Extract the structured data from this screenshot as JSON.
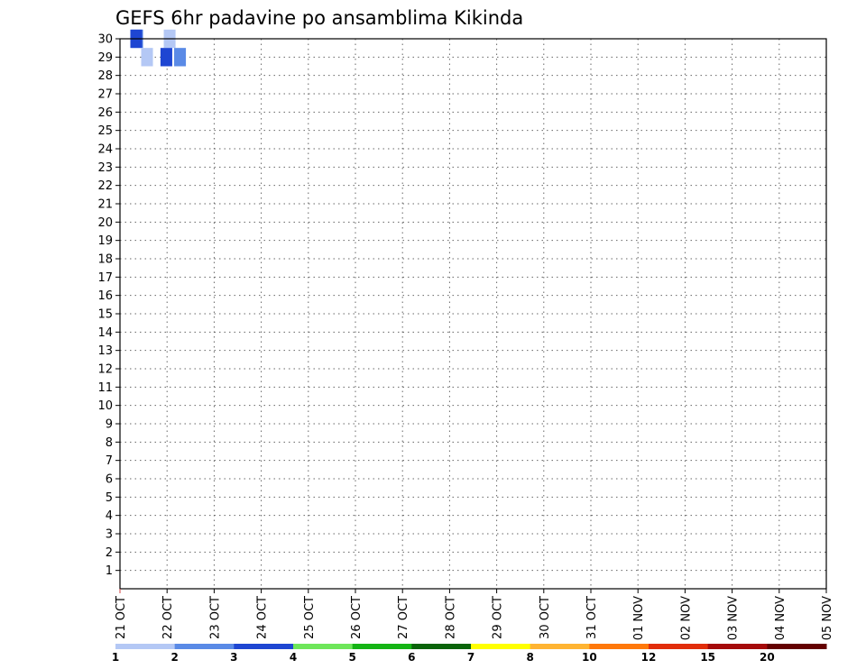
{
  "chart_data": {
    "type": "heatmap",
    "title": "GEFS 6hr padavine po ansamblima Kikinda",
    "xlabel": "",
    "ylabel": "",
    "x_tick_labels": [
      "21 OCT",
      "22 OCT",
      "23 OCT",
      "24 OCT",
      "25 OCT",
      "26 OCT",
      "27 OCT",
      "28 OCT",
      "29 OCT",
      "30 OCT",
      "31 OCT",
      "01 NOV",
      "02 NOV",
      "03 NOV",
      "04 NOV",
      "05 NOV"
    ],
    "y_tick_labels": [
      "1",
      "2",
      "3",
      "4",
      "5",
      "6",
      "7",
      "8",
      "9",
      "10",
      "11",
      "12",
      "13",
      "14",
      "15",
      "16",
      "17",
      "18",
      "19",
      "20",
      "21",
      "22",
      "23",
      "24",
      "25",
      "26",
      "27",
      "28",
      "29",
      "30"
    ],
    "x_range_days": [
      0,
      15
    ],
    "y_range": [
      0,
      30
    ],
    "grid": true,
    "colorbar": {
      "labels": [
        "1",
        "2",
        "3",
        "4",
        "5",
        "6",
        "7",
        "8",
        "10",
        "12",
        "15",
        "20"
      ],
      "colors": [
        "#b4c8f5",
        "#5a8ae6",
        "#1e46d2",
        "#6ee65a",
        "#14b414",
        "#0a640a",
        "#ffff00",
        "#ffb432",
        "#ff780a",
        "#e12d0a",
        "#a50a0a",
        "#640000"
      ]
    },
    "cells": [
      {
        "d": 0.93,
        "m": 30,
        "v": 1.5
      },
      {
        "d": 0.24,
        "m": 30,
        "v": 2.5
      },
      {
        "d": 0.22,
        "m": 30,
        "v": 3.5
      },
      {
        "d": 0.45,
        "m": 29,
        "v": 1.5
      },
      {
        "d": 1.15,
        "m": 29,
        "v": 2.5
      },
      {
        "d": 0.86,
        "m": 29,
        "v": 3.5
      }
    ]
  }
}
